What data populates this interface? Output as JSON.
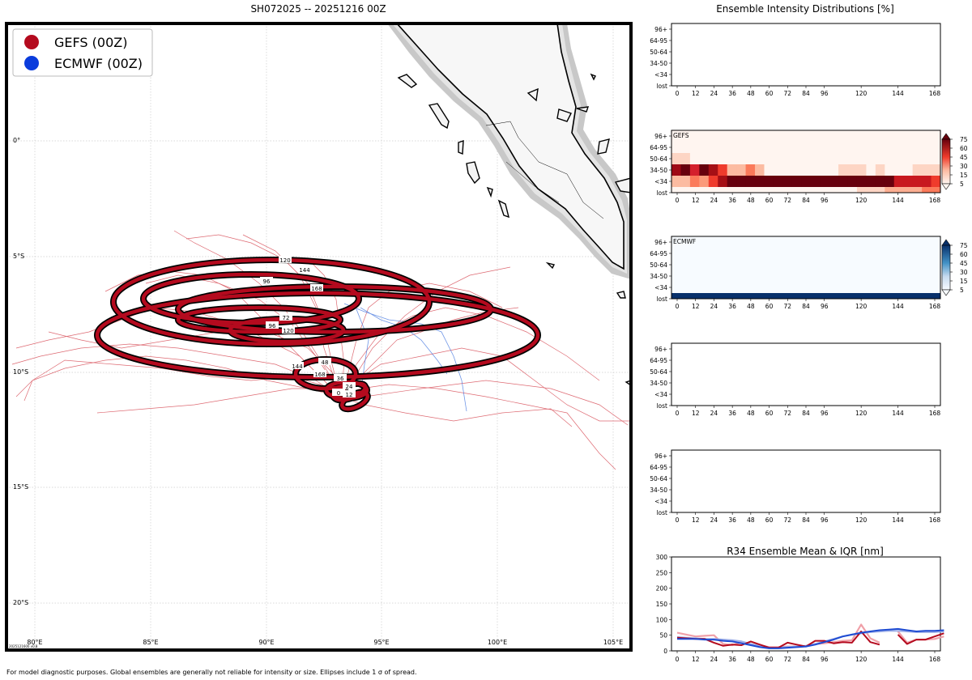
{
  "map": {
    "title": "SH072025 -- 20251216 00Z",
    "stamp": "2025121600 v0.8",
    "footer": "For model diagnostic purposes. Global ensembles are generally not reliable for intensity or size. Ellipses include 1 σ of spread.",
    "lon_labels": [
      "80°E",
      "85°E",
      "90°E",
      "95°E",
      "100°E",
      "105°E"
    ],
    "lat_labels": [
      "0°",
      "5°S",
      "10°S",
      "15°S",
      "20°S"
    ],
    "legend": [
      {
        "label": "GEFS (00Z)",
        "color": "#b40a1e"
      },
      {
        "label": "ECMWF (00Z)",
        "color": "#0a3cdc"
      }
    ],
    "ellipse_labels": [
      "120",
      "144",
      "96",
      "168",
      "72",
      "96",
      "120",
      "48",
      "144",
      "168",
      "36",
      "24",
      "12",
      "0"
    ]
  },
  "panels": {
    "title": "Ensemble Intensity Distributions [%]",
    "ylabels": [
      "96+",
      "64-95",
      "50-64",
      "34-50",
      "<34",
      "lost"
    ],
    "xlabels": [
      "0",
      "12",
      "24",
      "36",
      "48",
      "60",
      "72",
      "84",
      "96",
      "120",
      "144",
      "168"
    ],
    "gefs_label": "GEFS",
    "ecmwf_label": "ECMWF",
    "colorbar_ticks": [
      "75",
      "60",
      "45",
      "30",
      "15",
      "5"
    ],
    "gefs_color_low": "#fff5f0",
    "gefs_color_high": "#67000d",
    "ecmwf_color_low": "#f7fbff",
    "ecmwf_color_high": "#08306b"
  },
  "chart_data": {
    "type": "line",
    "title": "R34 Ensemble Mean & IQR [nm]",
    "x": [
      0,
      6,
      12,
      18,
      24,
      30,
      36,
      42,
      48,
      54,
      60,
      66,
      72,
      78,
      84,
      90,
      96,
      102,
      108,
      114,
      120,
      126,
      132,
      138,
      144,
      150,
      156,
      162,
      168,
      174
    ],
    "ylim": [
      0,
      300
    ],
    "yticks": [
      "0",
      "50",
      "100",
      "150",
      "200",
      "250",
      "300"
    ],
    "series": [
      {
        "name": "GEFS mean",
        "color": "#b40a1e",
        "values": [
          42,
          40,
          38,
          38,
          26,
          16,
          20,
          18,
          30,
          20,
          10,
          10,
          26,
          20,
          14,
          32,
          32,
          24,
          28,
          26,
          62,
          28,
          20,
          null,
          52,
          22,
          36,
          36,
          46,
          56
        ]
      },
      {
        "name": "GEFS IQR",
        "color": "#f0a0a8",
        "values": [
          58,
          52,
          46,
          48,
          50,
          22,
          18,
          28,
          20,
          18,
          12,
          12,
          14,
          14,
          16,
          22,
          24,
          28,
          32,
          34,
          84,
          40,
          26,
          null,
          62,
          26,
          36,
          36,
          38,
          46
        ]
      },
      {
        "name": "ECMWF mean",
        "color": "#1e4bd2",
        "values": [
          38,
          38,
          38,
          36,
          36,
          32,
          30,
          24,
          18,
          12,
          8,
          8,
          10,
          12,
          14,
          20,
          28,
          36,
          46,
          52,
          58,
          62,
          66,
          68,
          70,
          66,
          62,
          64,
          64,
          66
        ]
      },
      {
        "name": "ECMWF IQR",
        "color": "#9fb0e8",
        "values": [
          44,
          42,
          40,
          38,
          38,
          36,
          34,
          30,
          22,
          16,
          10,
          10,
          12,
          14,
          16,
          22,
          30,
          38,
          46,
          52,
          56,
          60,
          62,
          64,
          64,
          62,
          60,
          60,
          60,
          62
        ]
      }
    ]
  }
}
